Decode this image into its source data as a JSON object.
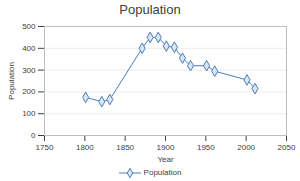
{
  "chart_data": {
    "type": "line",
    "title": "Population",
    "x_label": "Year",
    "y_label": "Population",
    "x": [
      1801,
      1821,
      1831,
      1871,
      1881,
      1891,
      1901,
      1911,
      1921,
      1931,
      1951,
      1961,
      2001,
      2011
    ],
    "series": [
      {
        "name": "Population",
        "color": "#4a7ebb",
        "marker": "diamond",
        "values": [
          175,
          155,
          165,
          400,
          450,
          450,
          410,
          405,
          355,
          320,
          320,
          295,
          255,
          215
        ]
      }
    ],
    "xlim": [
      1750,
      2050
    ],
    "xticks": [
      1750,
      1800,
      1850,
      1900,
      1950,
      2000,
      2050
    ],
    "ylim": [
      0,
      500
    ],
    "yticks": [
      0,
      100,
      200,
      300,
      400,
      500
    ],
    "grid": true,
    "legend": "bottom"
  }
}
